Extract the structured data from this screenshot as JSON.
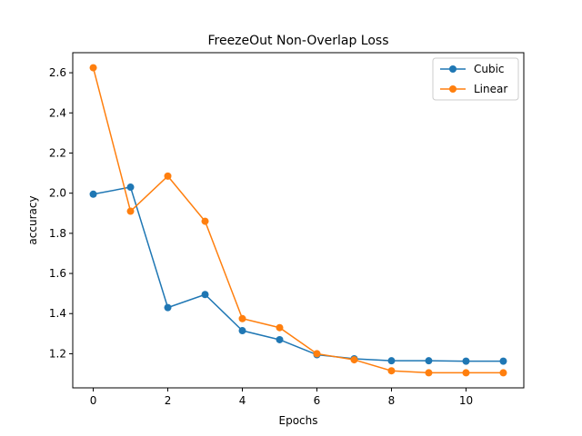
{
  "chart_data": {
    "type": "line",
    "title": "FreezeOut Non-Overlap Loss",
    "xlabel": "Epochs",
    "ylabel": "accuracy",
    "x": [
      0,
      1,
      2,
      3,
      4,
      5,
      6,
      7,
      8,
      9,
      10,
      11
    ],
    "xlim": [
      -0.55,
      11.55
    ],
    "ylim": [
      1.03,
      2.7
    ],
    "xticks": [
      0,
      2,
      4,
      6,
      8,
      10
    ],
    "xtick_labels": [
      "0",
      "2",
      "4",
      "6",
      "8",
      "10"
    ],
    "yticks": [
      1.2,
      1.4,
      1.6,
      1.8,
      2.0,
      2.2,
      2.4,
      2.6
    ],
    "ytick_labels": [
      "1.2",
      "1.4",
      "1.6",
      "1.8",
      "2.0",
      "2.2",
      "2.4",
      "2.6"
    ],
    "grid": false,
    "legend_position": "top-right",
    "series": [
      {
        "name": "Cubic",
        "color": "#1f77b4",
        "values": [
          1.995,
          2.03,
          1.43,
          1.495,
          1.315,
          1.27,
          1.195,
          1.175,
          1.165,
          1.165,
          1.163,
          1.163
        ]
      },
      {
        "name": "Linear",
        "color": "#ff7f0e",
        "values": [
          2.625,
          1.91,
          2.085,
          1.86,
          1.375,
          1.33,
          1.2,
          1.17,
          1.115,
          1.105,
          1.105,
          1.105
        ]
      }
    ]
  }
}
